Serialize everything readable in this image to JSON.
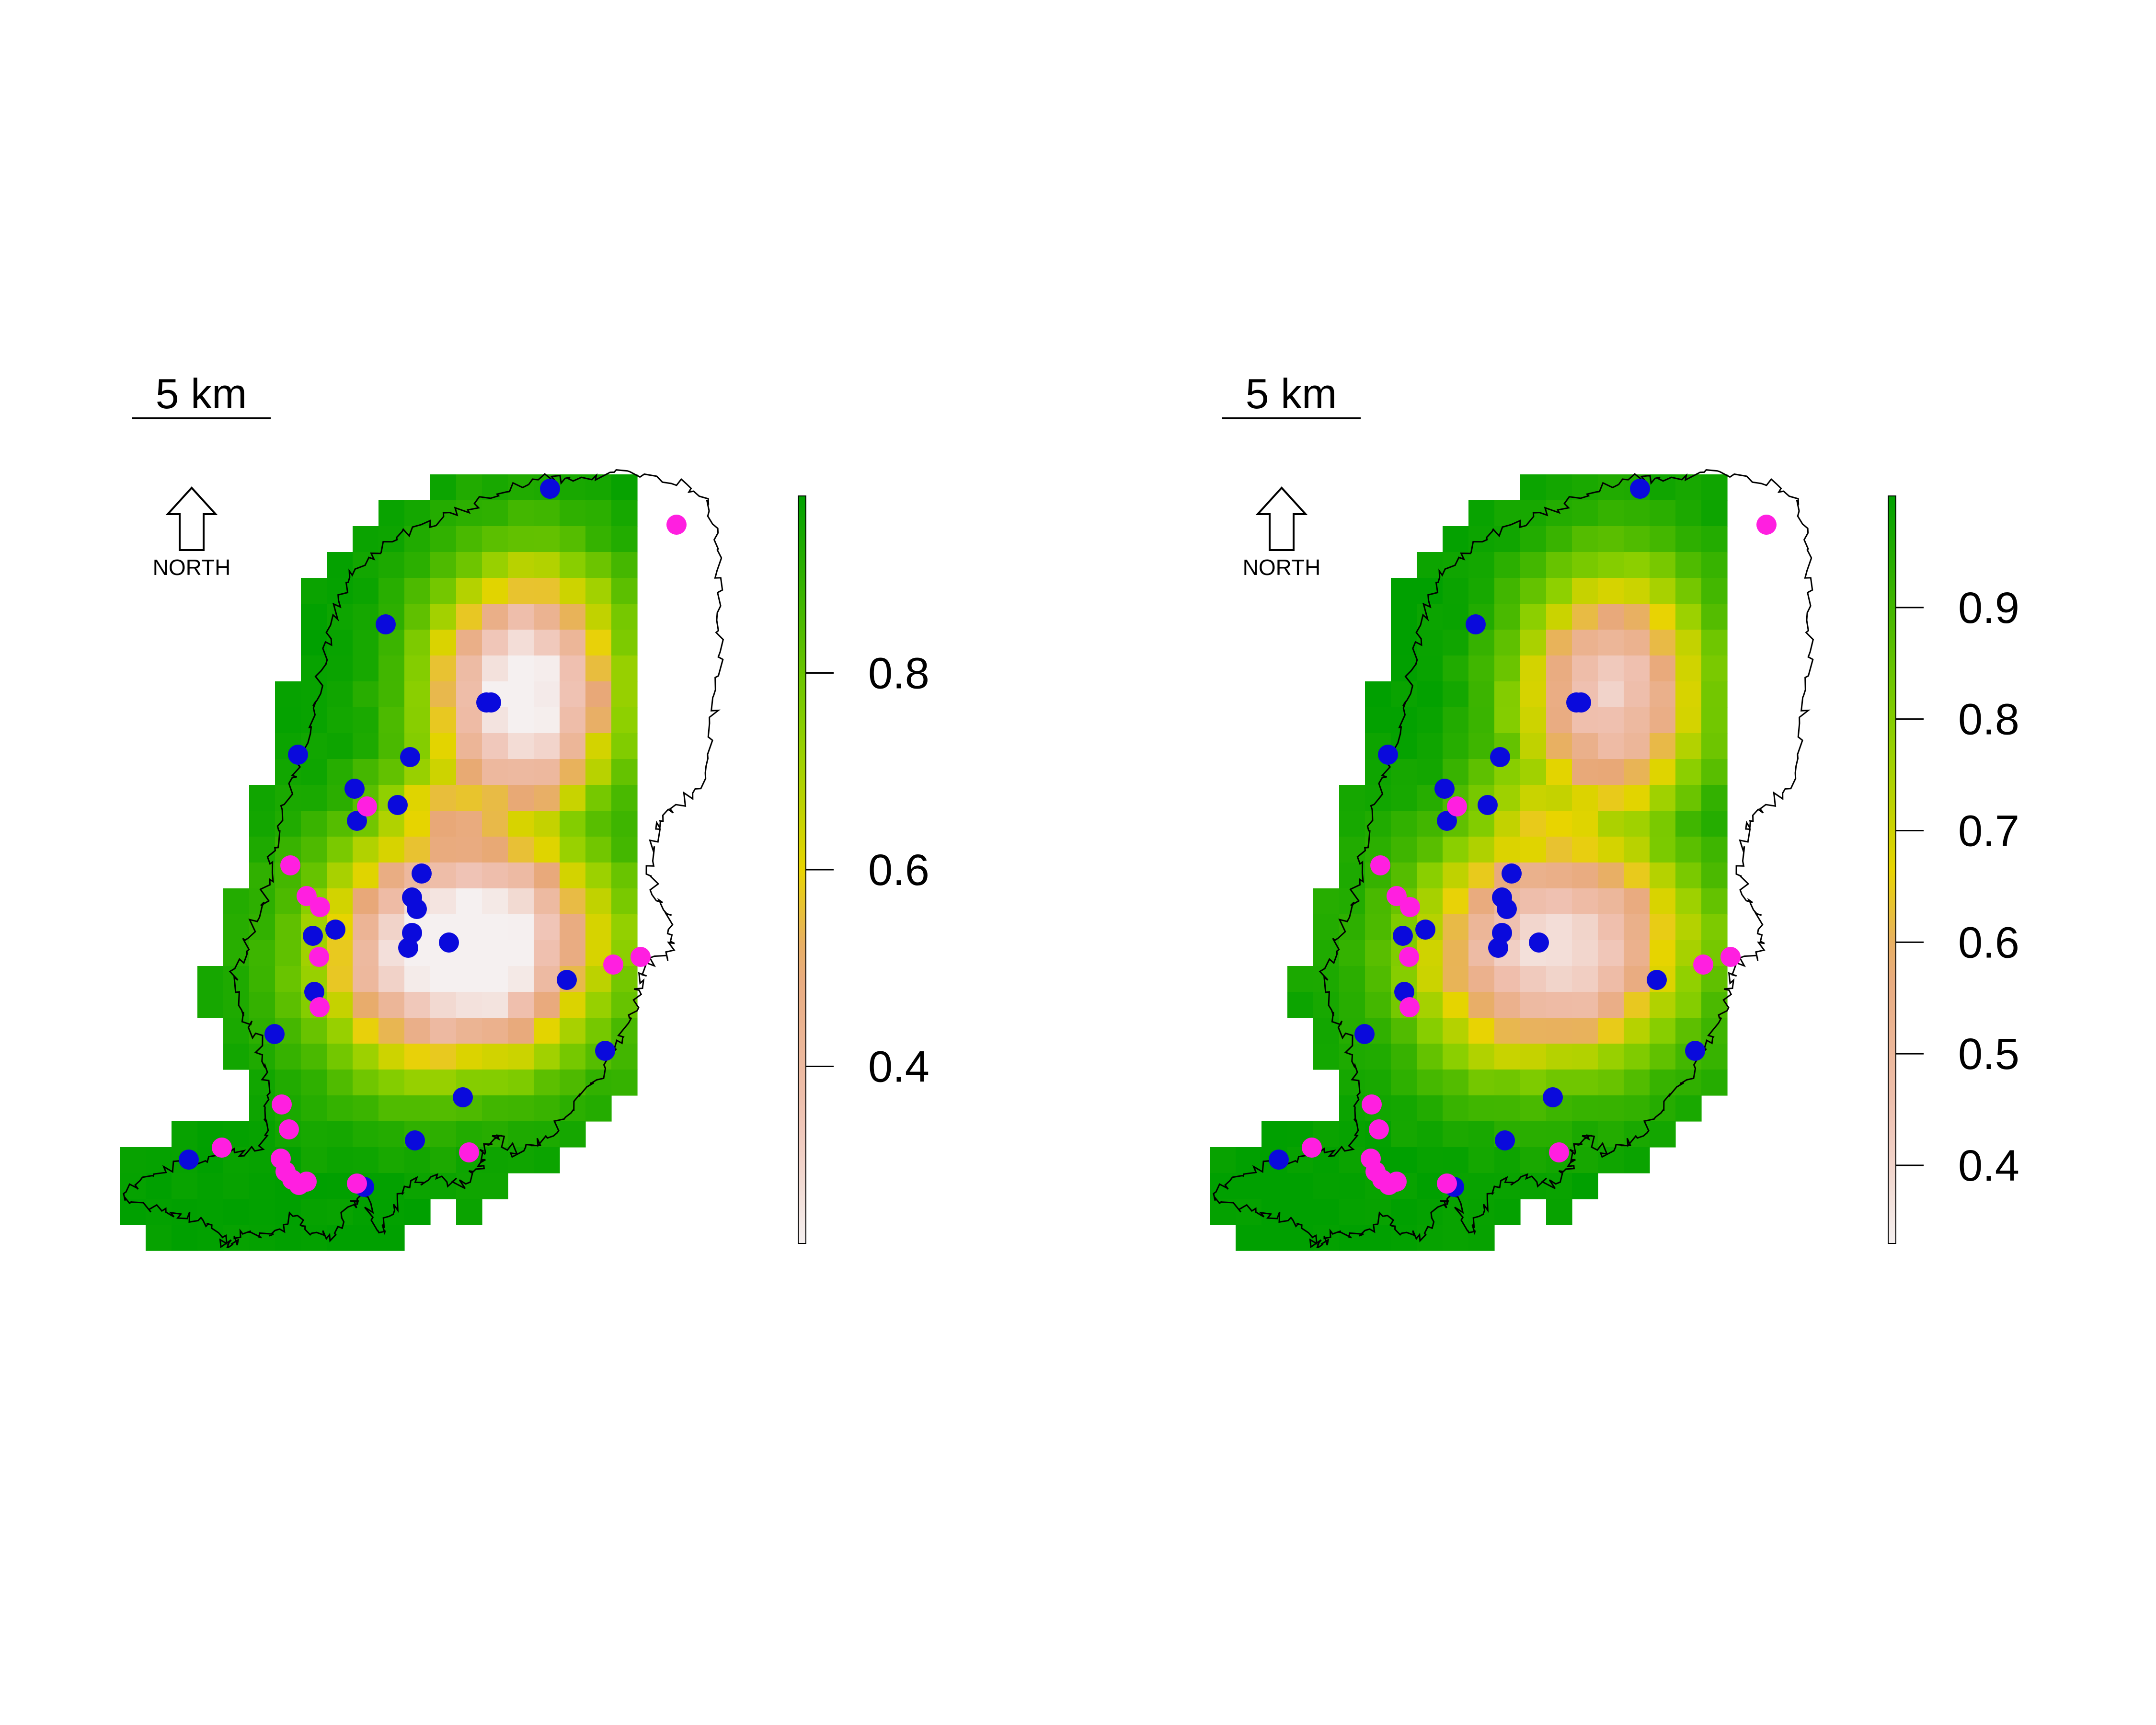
{
  "panels": [
    {
      "id": "left",
      "scale_bar_label": "5 km",
      "north_label": "NORTH",
      "legend": {
        "min": 0.22,
        "max": 0.98,
        "ticks": [
          "0.4",
          "0.6",
          "0.8"
        ],
        "tick_values": [
          0.4,
          0.6,
          0.8
        ]
      },
      "surface": {
        "low": 0.22,
        "high": 0.98,
        "shape": 1.0
      }
    },
    {
      "id": "right",
      "scale_bar_label": "5 km",
      "north_label": "NORTH",
      "legend": {
        "min": 0.33,
        "max": 1.0,
        "ticks": [
          "0.4",
          "0.5",
          "0.6",
          "0.7",
          "0.8",
          "0.9"
        ],
        "tick_values": [
          0.4,
          0.5,
          0.6,
          0.7,
          0.8,
          0.9
        ]
      },
      "surface": {
        "low": 0.33,
        "high": 1.0,
        "shape": 0.82
      }
    }
  ],
  "points": {
    "blue": {
      "color": "#0a0adc",
      "name": ""
    },
    "magenta": {
      "color": "#ff1fe0",
      "name": ""
    }
  },
  "colors": {
    "ramp": [
      "#f5f0f0",
      "#efc0b0",
      "#e8a878",
      "#e8d400",
      "#8ed000",
      "#00a000"
    ],
    "outline": "#000000"
  }
}
